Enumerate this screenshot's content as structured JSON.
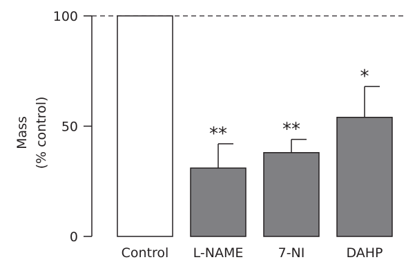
{
  "chart_data": {
    "type": "bar",
    "categories": [
      "Control",
      "L-NAME",
      "7-NI",
      "DAHP"
    ],
    "values": [
      100,
      31,
      38,
      54
    ],
    "errors": [
      0,
      11,
      6,
      14
    ],
    "significance": [
      "",
      "**",
      "**",
      "*"
    ],
    "bar_colors": [
      "#ffffff",
      "#808083",
      "#808083",
      "#808083"
    ],
    "edge_color": "#231f20",
    "ylabel_lines": [
      "Mass",
      "(% control)"
    ],
    "xlabel": "",
    "ylim": [
      0,
      100
    ],
    "yticks": [
      0,
      50,
      100
    ],
    "reference_line": {
      "y": 100,
      "style": "dashed"
    },
    "grid": false
  }
}
